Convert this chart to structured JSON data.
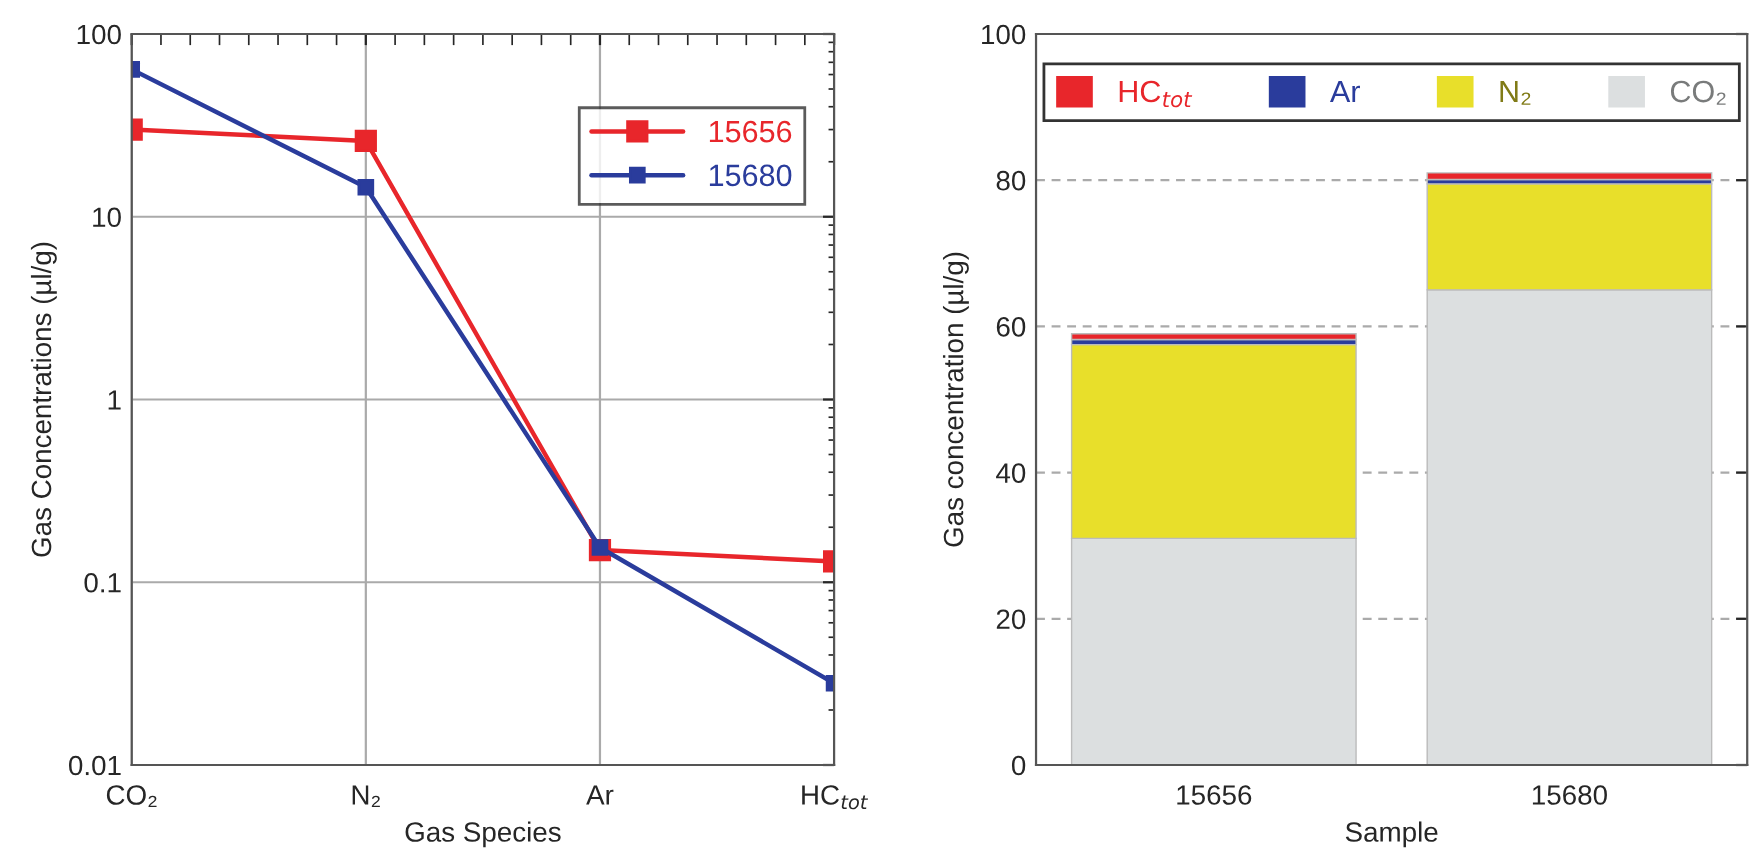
{
  "chart_data": [
    {
      "type": "line",
      "xlabel": "Gas Species",
      "ylabel": "Gas Concentrations (µl/g)",
      "categories": [
        "CO₂",
        "N₂",
        "Ar",
        "HC$_{tot}$"
      ],
      "log": "y",
      "ylim": [
        0.01,
        100
      ],
      "yticks": [
        0.01,
        0.1,
        1,
        10,
        100
      ],
      "grid": true,
      "legend": "top right",
      "marker": "square",
      "line_style": "solid",
      "series": [
        {
          "name": "15656",
          "color": "#e8262b",
          "values": [
            30,
            26,
            0.15,
            0.13
          ]
        },
        {
          "name": "15680",
          "color": "#2a3c9c",
          "values": [
            64,
            14.5,
            0.155,
            0.028
          ]
        }
      ]
    },
    {
      "type": "bar",
      "stacked": true,
      "xlabel": "Sample",
      "ylabel": "Gas concentration (µl/g)",
      "categories": [
        "15656",
        "15680"
      ],
      "ylim": [
        0,
        100
      ],
      "yticks": [
        0,
        20,
        40,
        60,
        80,
        100
      ],
      "grid": "y",
      "legend": "top",
      "series": [
        {
          "name": "CO₂",
          "color": "#dcdfe0",
          "values": [
            31,
            65
          ]
        },
        {
          "name": "N₂",
          "color": "#e8df2a",
          "values": [
            26.5,
            14.5
          ]
        },
        {
          "name": "Ar",
          "color": "#2a3c9c",
          "values": [
            0.7,
            0.6
          ]
        },
        {
          "name": "HC$_{tot}$",
          "color": "#e8262b",
          "values": [
            0.8,
            0.9
          ]
        }
      ]
    }
  ]
}
